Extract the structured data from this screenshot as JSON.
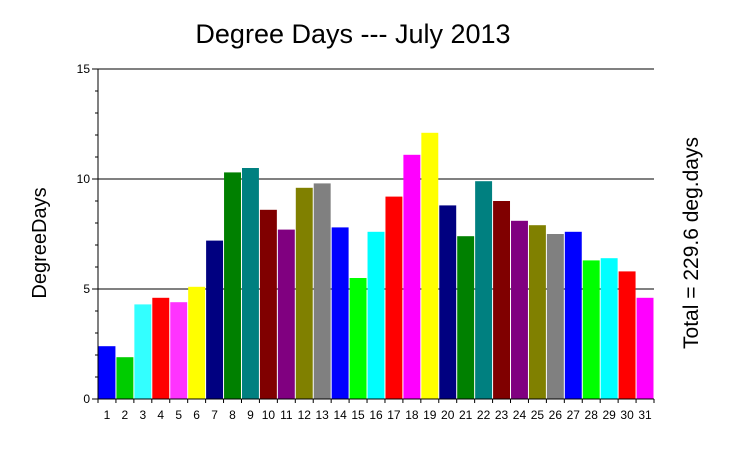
{
  "chart_data": {
    "type": "bar",
    "title": "Degree Days --- July 2013",
    "ylabel": "DegreeDays",
    "xlabel": "",
    "right_label": "Total = 229.6 deg.days",
    "ylim": [
      0,
      15
    ],
    "yticks": [
      0,
      5,
      10,
      15
    ],
    "grid": "horizontal at major ticks",
    "categories": [
      "1",
      "2",
      "3",
      "4",
      "5",
      "6",
      "7",
      "8",
      "9",
      "10",
      "11",
      "12",
      "13",
      "14",
      "15",
      "16",
      "17",
      "18",
      "19",
      "20",
      "21",
      "22",
      "23",
      "24",
      "25",
      "26",
      "27",
      "28",
      "29",
      "30",
      "31"
    ],
    "values": [
      2.4,
      1.9,
      4.3,
      4.6,
      4.4,
      5.1,
      7.2,
      10.3,
      10.5,
      8.6,
      7.7,
      9.6,
      9.8,
      7.8,
      5.5,
      7.6,
      9.2,
      11.1,
      12.1,
      8.8,
      7.4,
      9.9,
      9.0,
      8.1,
      7.9,
      7.5,
      7.6,
      6.3,
      6.4,
      5.8,
      4.6
    ],
    "bar_colors": [
      "#0000ff",
      "#00cc00",
      "#33ffff",
      "#ff0000",
      "#ff33ff",
      "#ffff00",
      "#000080",
      "#008000",
      "#008080",
      "#800000",
      "#800080",
      "#808000",
      "#808080",
      "#0000ff",
      "#00ff00",
      "#00ffff",
      "#ff0000",
      "#ff00ff",
      "#ffff00",
      "#000080",
      "#008000",
      "#008080",
      "#800000",
      "#800080",
      "#808000",
      "#808080",
      "#0000ff",
      "#00ff00",
      "#00ffff",
      "#ff0000",
      "#ff00ff"
    ]
  }
}
